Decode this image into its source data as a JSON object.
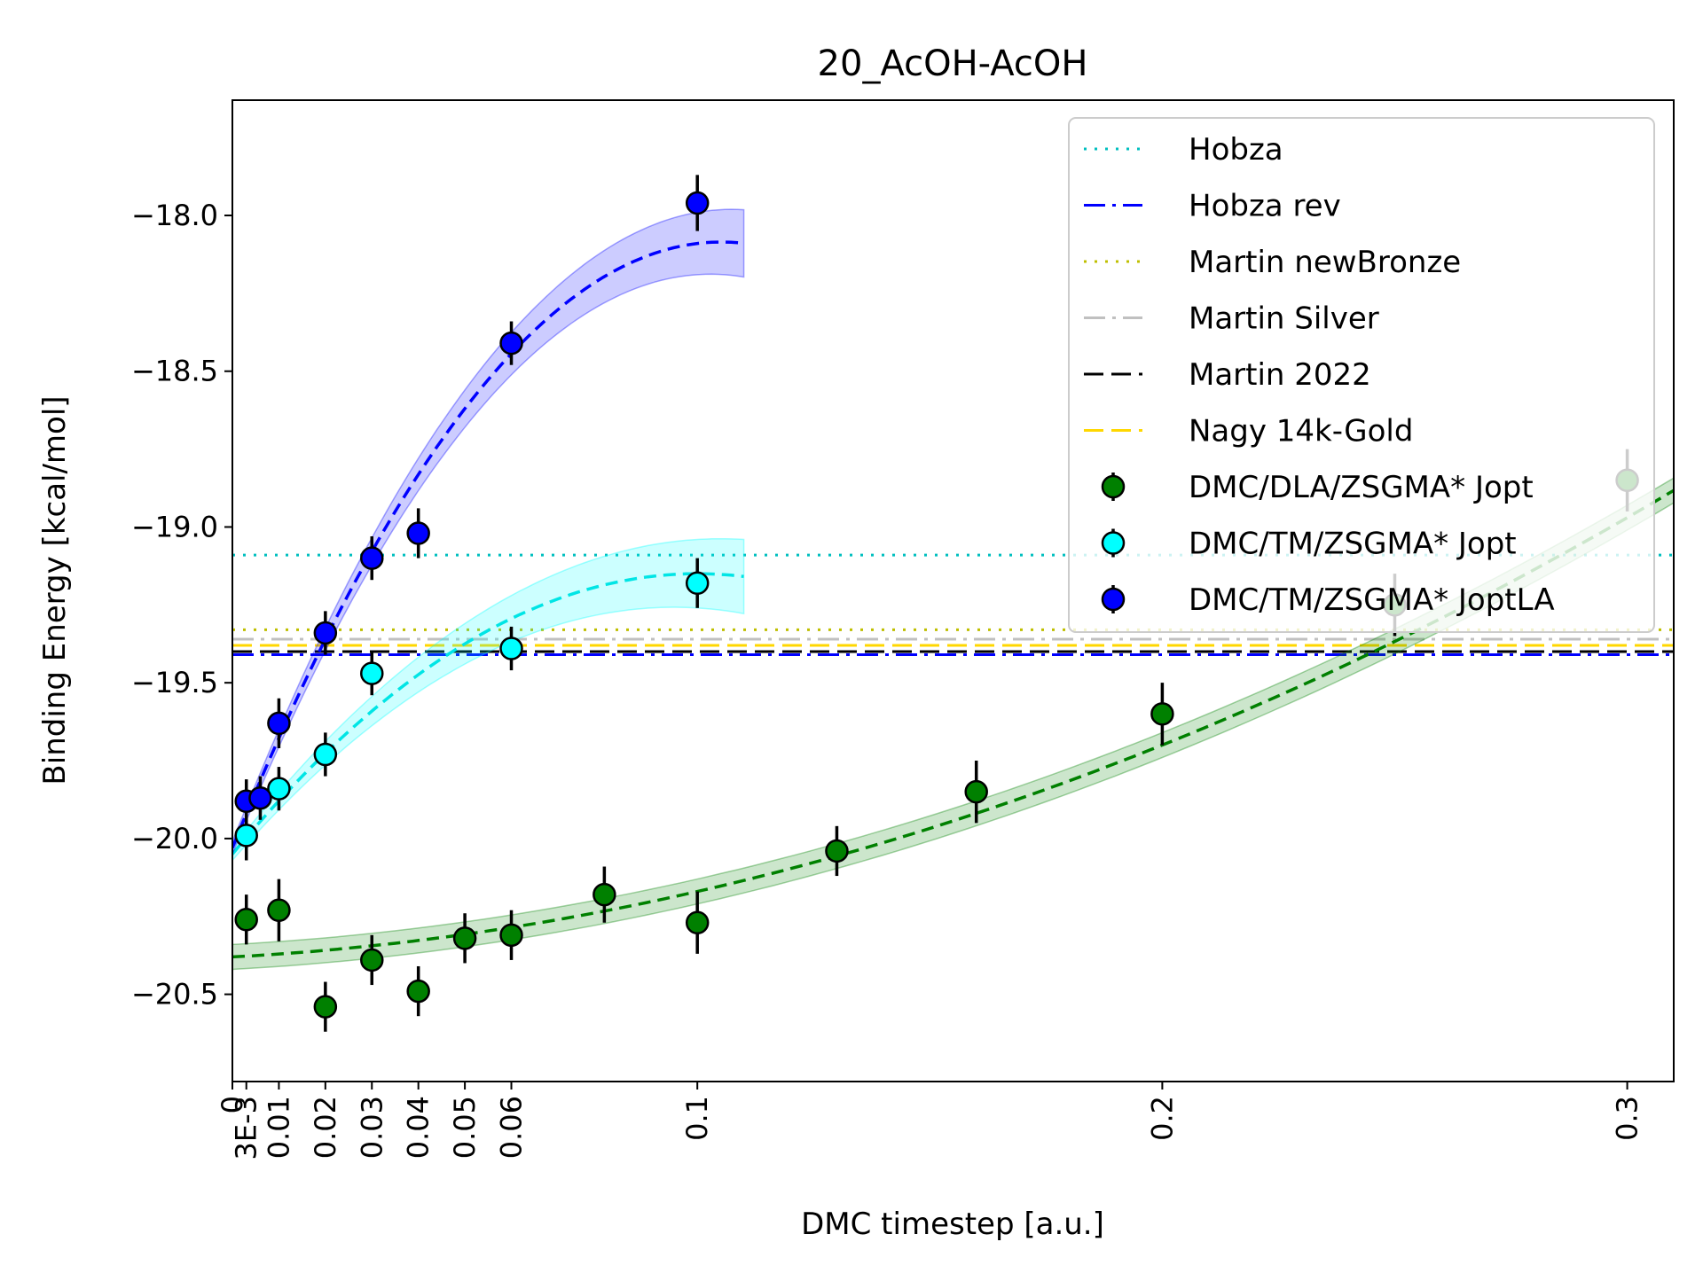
{
  "chart_data": {
    "type": "scatter",
    "title": "20_AcOH-AcOH",
    "xlabel": "DMC timestep [a.u.]",
    "ylabel": "Binding Energy [kcal/mol]",
    "xlim": [
      0,
      0.31
    ],
    "ylim": [
      -20.78,
      -17.63
    ],
    "grid": false,
    "legend_position": "top-right",
    "x_ticks": [
      {
        "value": 0,
        "label": "0"
      },
      {
        "value": 0.003,
        "label": "3E-3"
      },
      {
        "value": 0.01,
        "label": "0.01"
      },
      {
        "value": 0.02,
        "label": "0.02"
      },
      {
        "value": 0.03,
        "label": "0.03"
      },
      {
        "value": 0.04,
        "label": "0.04"
      },
      {
        "value": 0.05,
        "label": "0.05"
      },
      {
        "value": 0.06,
        "label": "0.06"
      },
      {
        "value": 0.1,
        "label": "0.1"
      },
      {
        "value": 0.2,
        "label": "0.2"
      },
      {
        "value": 0.3,
        "label": "0.3"
      }
    ],
    "y_ticks": [
      {
        "value": -18.0,
        "label": "−18.0"
      },
      {
        "value": -18.5,
        "label": "−18.5"
      },
      {
        "value": -19.0,
        "label": "−19.0"
      },
      {
        "value": -19.5,
        "label": "−19.5"
      },
      {
        "value": -20.0,
        "label": "−20.0"
      },
      {
        "value": -20.5,
        "label": "−20.5"
      }
    ],
    "reference_lines": [
      {
        "name": "Hobza",
        "y": -19.09,
        "color": "#00bfbf",
        "style": "dotted"
      },
      {
        "name": "Hobza rev",
        "y": -19.41,
        "color": "#0000ff",
        "style": "dashdot"
      },
      {
        "name": "Martin newBronze",
        "y": -19.33,
        "color": "#bfbf00",
        "style": "dotted"
      },
      {
        "name": "Martin Silver",
        "y": -19.36,
        "color": "#c0c0c0",
        "style": "dashdot"
      },
      {
        "name": "Martin 2022",
        "y": -19.4,
        "color": "#000000",
        "style": "dashed"
      },
      {
        "name": "Nagy 14k-Gold",
        "y": -19.38,
        "color": "#ffd700",
        "style": "dashed"
      }
    ],
    "series": [
      {
        "name": "DMC/DLA/ZSGMA* Jopt",
        "color": "#008000",
        "fit": {
          "a": -20.38,
          "b": 0.8,
          "c": 13.0,
          "x_max": 0.31,
          "band": 0.04
        },
        "points": [
          {
            "x": 0.003,
            "y": -20.26,
            "err": 0.08
          },
          {
            "x": 0.01,
            "y": -20.23,
            "err": 0.1
          },
          {
            "x": 0.02,
            "y": -20.54,
            "err": 0.08
          },
          {
            "x": 0.03,
            "y": -20.39,
            "err": 0.08
          },
          {
            "x": 0.04,
            "y": -20.49,
            "err": 0.08
          },
          {
            "x": 0.05,
            "y": -20.32,
            "err": 0.08
          },
          {
            "x": 0.06,
            "y": -20.31,
            "err": 0.08
          },
          {
            "x": 0.08,
            "y": -20.18,
            "err": 0.09
          },
          {
            "x": 0.1,
            "y": -20.27,
            "err": 0.1
          },
          {
            "x": 0.13,
            "y": -20.04,
            "err": 0.08
          },
          {
            "x": 0.16,
            "y": -19.85,
            "err": 0.1
          },
          {
            "x": 0.2,
            "y": -19.6,
            "err": 0.1
          },
          {
            "x": 0.25,
            "y": -19.25,
            "err": 0.1
          },
          {
            "x": 0.3,
            "y": -18.85,
            "err": 0.1
          }
        ]
      },
      {
        "name": "DMC/TM/ZSGMA* Jopt",
        "color": "#00ffff",
        "fit": {
          "a": -20.05,
          "b": 18.0,
          "c": -90.0,
          "x_max": 0.11,
          "band_slope": 0.9
        },
        "points": [
          {
            "x": 0.003,
            "y": -19.99,
            "err": 0.08
          },
          {
            "x": 0.01,
            "y": -19.84,
            "err": 0.07
          },
          {
            "x": 0.02,
            "y": -19.73,
            "err": 0.07
          },
          {
            "x": 0.03,
            "y": -19.47,
            "err": 0.07
          },
          {
            "x": 0.06,
            "y": -19.39,
            "err": 0.07
          },
          {
            "x": 0.1,
            "y": -19.18,
            "err": 0.08
          }
        ]
      },
      {
        "name": "DMC/TM/ZSGMA* JoptLA",
        "color": "#0000ff",
        "fit": {
          "a": -20.03,
          "b": 37.0,
          "c": -176.0,
          "x_max": 0.11,
          "band_slope": 0.8
        },
        "points": [
          {
            "x": 0.003,
            "y": -19.88,
            "err": 0.07
          },
          {
            "x": 0.006,
            "y": -19.87,
            "err": 0.07
          },
          {
            "x": 0.01,
            "y": -19.63,
            "err": 0.08
          },
          {
            "x": 0.02,
            "y": -19.34,
            "err": 0.07
          },
          {
            "x": 0.03,
            "y": -19.1,
            "err": 0.07
          },
          {
            "x": 0.04,
            "y": -19.02,
            "err": 0.08
          },
          {
            "x": 0.06,
            "y": -18.41,
            "err": 0.07
          },
          {
            "x": 0.1,
            "y": -17.96,
            "err": 0.09
          }
        ]
      }
    ]
  }
}
